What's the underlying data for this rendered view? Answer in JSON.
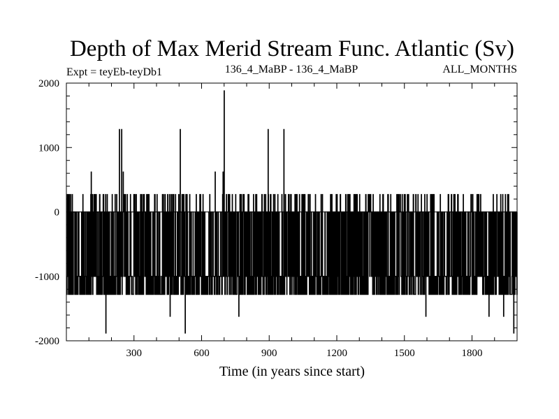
{
  "chart_data": {
    "type": "line",
    "title": "Depth of Max Merid Stream Func. Atlantic (Sv)",
    "subtitle_left": "Expt = teyEb-teyDb1",
    "subtitle_center": "136_4_MaBP - 136_4_MaBP",
    "subtitle_right": "ALL_MONTHS",
    "xlabel": "Time (in years since start)",
    "ylabel": "",
    "xlim": [
      0,
      2000
    ],
    "ylim": [
      -2000,
      2000
    ],
    "x_ticks": [
      300,
      600,
      900,
      1200,
      1500,
      1800
    ],
    "y_ticks": [
      2000,
      1000,
      0,
      -1000,
      -2000
    ],
    "zero_line": true,
    "grid": false,
    "legend": "none",
    "line_color": "#000000",
    "levels": [
      -1280,
      -1000,
      0,
      270
    ],
    "spikes": [
      {
        "x": 110,
        "y": 620
      },
      {
        "x": 175,
        "y": -1880
      },
      {
        "x": 235,
        "y": 1280
      },
      {
        "x": 245,
        "y": 1280
      },
      {
        "x": 252,
        "y": 620
      },
      {
        "x": 460,
        "y": -1620
      },
      {
        "x": 505,
        "y": 1280
      },
      {
        "x": 527,
        "y": -1880
      },
      {
        "x": 660,
        "y": 620
      },
      {
        "x": 695,
        "y": 620
      },
      {
        "x": 700,
        "y": 1880
      },
      {
        "x": 765,
        "y": -1620
      },
      {
        "x": 895,
        "y": 1280
      },
      {
        "x": 965,
        "y": 1280
      },
      {
        "x": 1595,
        "y": -1620
      },
      {
        "x": 1875,
        "y": -1620
      },
      {
        "x": 1940,
        "y": -1620
      },
      {
        "x": 1985,
        "y": -1880
      }
    ],
    "y_range_note_visible": false
  }
}
